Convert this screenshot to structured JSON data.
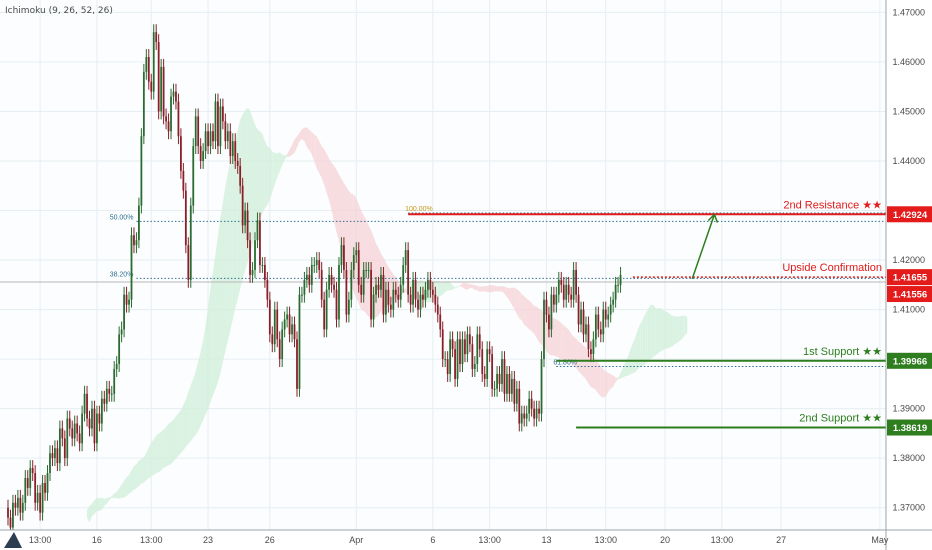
{
  "indicator": {
    "label": "Ichimoku (9, 26, 52, 26)"
  },
  "colors": {
    "background": "#fbfdfe",
    "grid": "#e6eef3",
    "bull": "#2a6b30",
    "bear": "#8a1f2a",
    "resistance": "#e31b1b",
    "support": "#2e7d1e",
    "price_line": "#b8b8b8",
    "fib": "#2f6f8f",
    "cloud_bull": "#d2efd9",
    "cloud_bear": "#f6d3d8"
  },
  "chart_data": {
    "type": "candlestick",
    "xlabel": "",
    "ylabel": "",
    "ylim": [
      1.3655,
      1.4725
    ],
    "y_ticks": [
      "1.47000",
      "1.46000",
      "1.45000",
      "1.44000",
      "1.43000",
      "1.42000",
      "1.41000",
      "1.40000",
      "1.39000",
      "1.38000",
      "1.37000"
    ],
    "x_ticks": [
      {
        "label": "13:00",
        "bar": 13
      },
      {
        "label": "16",
        "bar": 36
      },
      {
        "label": "13:00",
        "bar": 58
      },
      {
        "label": "23",
        "bar": 81
      },
      {
        "label": "26",
        "bar": 106
      },
      {
        "label": "Apr",
        "bar": 141
      },
      {
        "label": "6",
        "bar": 172
      },
      {
        "label": "13:00",
        "bar": 195
      },
      {
        "label": "13",
        "bar": 218
      },
      {
        "label": "13:00",
        "bar": 242
      },
      {
        "label": "20",
        "bar": 266
      },
      {
        "label": "13:00",
        "bar": 289
      },
      {
        "label": "27",
        "bar": 313
      },
      {
        "label": "May",
        "bar": 353
      }
    ],
    "closes": [
      1.368,
      1.366,
      1.371,
      1.37,
      1.372,
      1.369,
      1.371,
      1.376,
      1.374,
      1.378,
      1.377,
      1.371,
      1.373,
      1.369,
      1.375,
      1.373,
      1.377,
      1.381,
      1.38,
      1.382,
      1.379,
      1.386,
      1.384,
      1.38,
      1.388,
      1.386,
      1.384,
      1.387,
      1.385,
      1.383,
      1.389,
      1.393,
      1.388,
      1.386,
      1.39,
      1.383,
      1.389,
      1.387,
      1.392,
      1.391,
      1.394,
      1.393,
      1.393,
      1.398,
      1.399,
      1.405,
      1.406,
      1.413,
      1.411,
      1.412,
      1.425,
      1.423,
      1.424,
      1.431,
      1.445,
      1.458,
      1.461,
      1.456,
      1.454,
      1.466,
      1.464,
      1.45,
      1.459,
      1.449,
      1.448,
      1.446,
      1.453,
      1.454,
      1.452,
      1.445,
      1.438,
      1.434,
      1.423,
      1.416,
      1.431,
      1.443,
      1.449,
      1.443,
      1.44,
      1.442,
      1.446,
      1.443,
      1.446,
      1.444,
      1.452,
      1.443,
      1.451,
      1.448,
      1.444,
      1.446,
      1.441,
      1.444,
      1.44,
      1.439,
      1.435,
      1.427,
      1.43,
      1.424,
      1.417,
      1.418,
      1.424,
      1.428,
      1.419,
      1.419,
      1.416,
      1.412,
      1.405,
      1.403,
      1.41,
      1.404,
      1.4,
      1.406,
      1.408,
      1.409,
      1.405,
      1.407,
      1.404,
      1.394,
      1.413,
      1.413,
      1.416,
      1.417,
      1.415,
      1.419,
      1.419,
      1.42,
      1.418,
      1.412,
      1.406,
      1.414,
      1.417,
      1.415,
      1.414,
      1.408,
      1.419,
      1.423,
      1.418,
      1.409,
      1.412,
      1.418,
      1.421,
      1.422,
      1.415,
      1.413,
      1.418,
      1.418,
      1.418,
      1.408,
      1.413,
      1.415,
      1.414,
      1.417,
      1.409,
      1.414,
      1.411,
      1.41,
      1.414,
      1.413,
      1.412,
      1.415,
      1.419,
      1.422,
      1.413,
      1.411,
      1.416,
      1.412,
      1.41,
      1.413,
      1.412,
      1.414,
      1.416,
      1.414,
      1.413,
      1.411,
      1.409,
      1.406,
      1.4,
      1.4,
      1.397,
      1.404,
      1.402,
      1.396,
      1.404,
      1.399,
      1.404,
      1.401,
      1.405,
      1.403,
      1.398,
      1.399,
      1.405,
      1.402,
      1.397,
      1.396,
      1.402,
      1.401,
      1.394,
      1.394,
      1.397,
      1.395,
      1.4,
      1.393,
      1.397,
      1.393,
      1.396,
      1.391,
      1.394,
      1.387,
      1.389,
      1.388,
      1.389,
      1.392,
      1.39,
      1.388,
      1.39,
      1.389,
      1.4,
      1.412,
      1.409,
      1.406,
      1.413,
      1.411,
      1.413,
      1.416,
      1.415,
      1.412,
      1.415,
      1.413,
      1.412,
      1.418,
      1.413,
      1.407,
      1.41,
      1.405,
      1.407,
      1.402,
      1.401,
      1.404,
      1.409,
      1.406,
      1.405,
      1.41,
      1.408,
      1.409,
      1.411,
      1.412,
      1.415,
      1.415,
      1.417
    ],
    "levels": [
      {
        "label": "2nd Resistance ★★",
        "price": 1.42924,
        "price_label": "1.42924",
        "kind": "resistance"
      },
      {
        "label": "Upside Confirmation",
        "price": 1.41655,
        "price_label": "1.41655",
        "kind": "resistance"
      },
      {
        "label": "1st Support ★★",
        "price": 1.39966,
        "price_label": "1.39966",
        "kind": "support"
      },
      {
        "label": "2nd Support ★★",
        "price": 1.38619,
        "price_label": "1.38619",
        "kind": "support"
      }
    ],
    "current_price": {
      "price": 1.41556,
      "label": "1.41556"
    },
    "fibonacci": [
      {
        "label": "50.00%",
        "price": 1.4278
      },
      {
        "label": "38.20%",
        "price": 1.4163
      },
      {
        "label": "100.00%",
        "price": 1.4295
      },
      {
        "label": "61.80%",
        "price": 1.3985
      }
    ],
    "projection_arrow": {
      "from_price": 1.4162,
      "to_price": 1.4292
    }
  }
}
